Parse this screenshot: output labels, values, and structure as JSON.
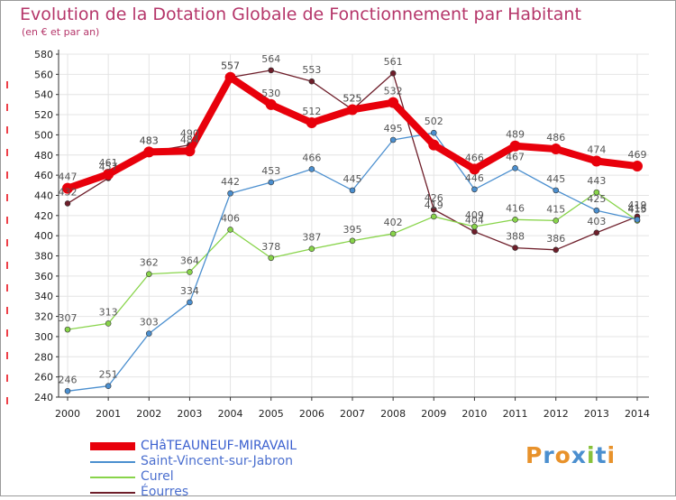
{
  "chart_data": {
    "type": "line",
    "title": "Evolution de la Dotation Globale de Fonctionnement par Habitant",
    "subtitle": "(en € et par an)",
    "xlabel": "",
    "ylabel": "",
    "x": [
      "2000",
      "2001",
      "2002",
      "2003",
      "2004",
      "2005",
      "2006",
      "2007",
      "2008",
      "2009",
      "2010",
      "2011",
      "2012",
      "2013",
      "2014"
    ],
    "ylim": [
      240,
      580
    ],
    "yticks": [
      240,
      260,
      280,
      300,
      320,
      340,
      360,
      380,
      400,
      420,
      440,
      460,
      480,
      500,
      520,
      540,
      560,
      580
    ],
    "grid": true,
    "legend_position": "bottom-left",
    "series": [
      {
        "name": "CHâTEAUNEUF-MIRAVAIL",
        "color": "#e8000b",
        "values": [
          447,
          461,
          483,
          484,
          557,
          530,
          512,
          525,
          532,
          490,
          466,
          489,
          486,
          474,
          469
        ],
        "labels": [
          "447",
          "461",
          "483",
          "484",
          "557",
          "530",
          "512",
          "525",
          "532",
          "",
          "466",
          "489",
          "486",
          "474",
          "469"
        ]
      },
      {
        "name": "Saint-Vincent-sur-Jabron",
        "color": "#4b8fcf",
        "values": [
          246,
          251,
          303,
          334,
          442,
          453,
          466,
          445,
          495,
          502,
          446,
          467,
          445,
          425,
          416
        ],
        "labels": [
          "246",
          "251",
          "303",
          "334",
          "442",
          "453",
          "466",
          "445",
          "495",
          "502",
          "446",
          "467",
          "445",
          "425",
          "416"
        ]
      },
      {
        "name": "Curel",
        "color": "#88d44a",
        "values": [
          307,
          313,
          362,
          364,
          406,
          378,
          387,
          395,
          402,
          419,
          409,
          416,
          415,
          443,
          415
        ],
        "labels": [
          "307",
          "313",
          "362",
          "364",
          "406",
          "378",
          "387",
          "395",
          "402",
          "419",
          "409",
          "416",
          "415",
          "443",
          "415"
        ]
      },
      {
        "name": "Éourres",
        "color": "#6e1e2a",
        "values": [
          432,
          457,
          483,
          490,
          557,
          564,
          553,
          525,
          561,
          426,
          404,
          388,
          386,
          403,
          419
        ],
        "labels": [
          "432",
          "457",
          "483",
          "490",
          "557",
          "564",
          "553",
          "525",
          "561",
          "426",
          "404",
          "388",
          "386",
          "403",
          "419"
        ]
      }
    ]
  },
  "logo": {
    "text": "Proxiti",
    "colors": [
      "#e8922b",
      "#4b8fcf",
      "#e8922b",
      "#4b8fcf",
      "#88c13a",
      "#4b8fcf",
      "#e8922b"
    ]
  }
}
